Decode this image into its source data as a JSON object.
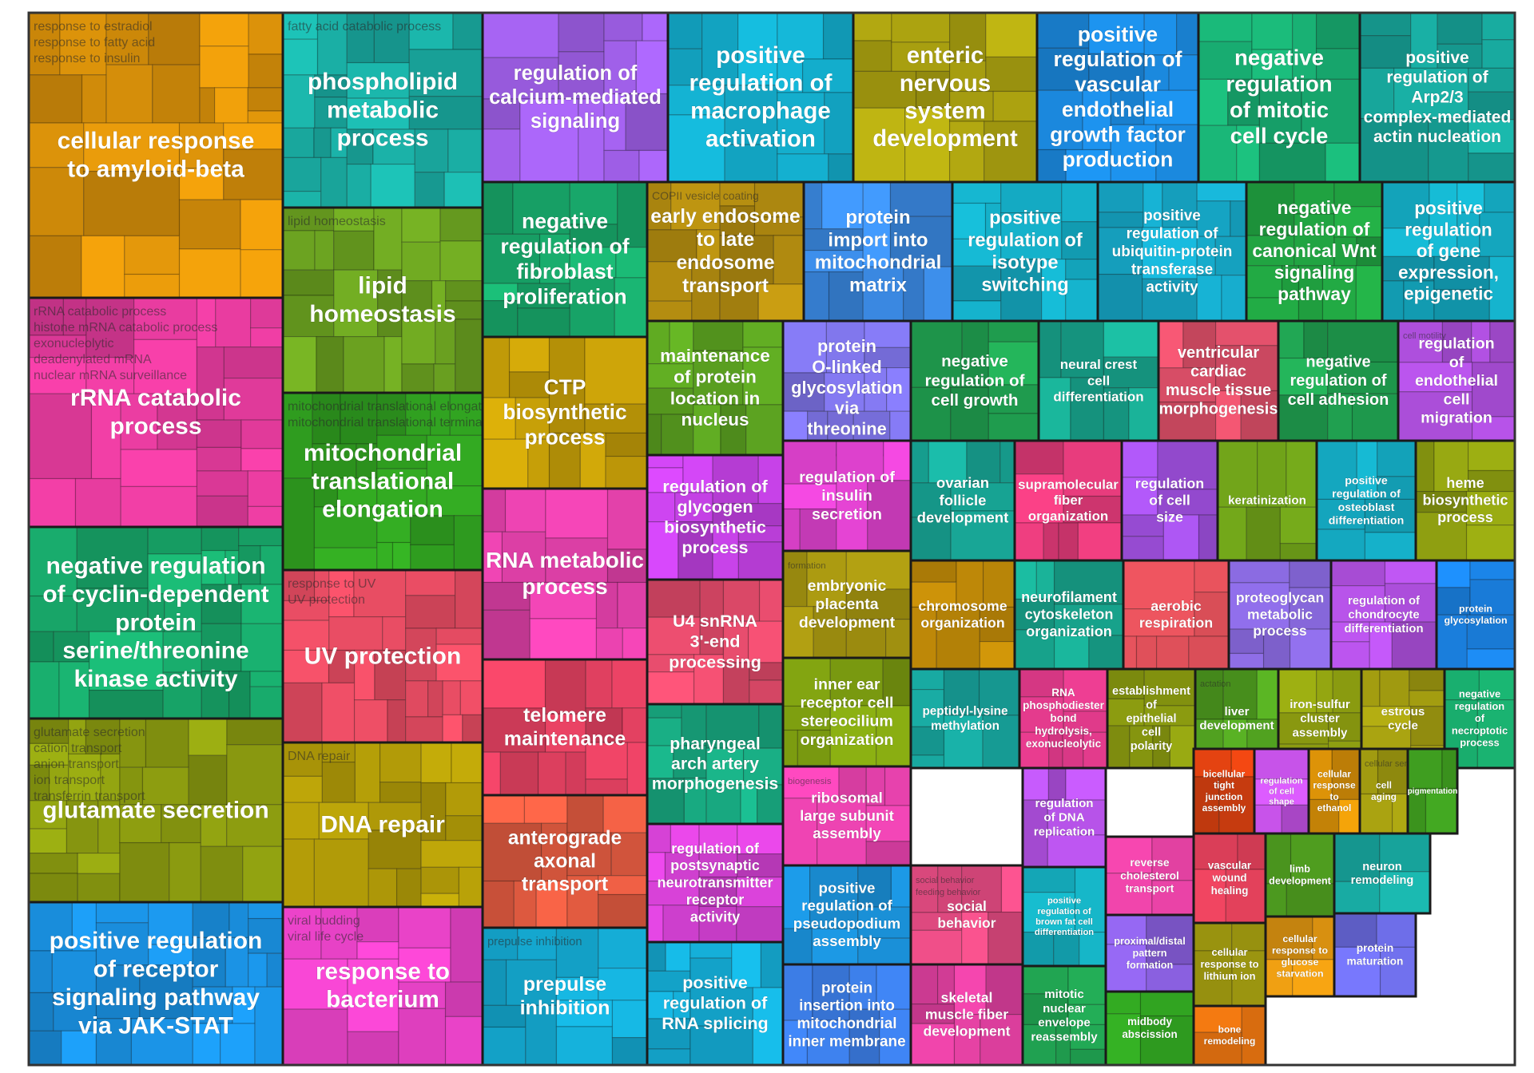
{
  "chart_data": {
    "type": "treemap",
    "title": "",
    "groups": [
      {
        "label": "cellular response to amyloid-beta",
        "color": "#d8900a",
        "size": 12,
        "sub": [
          "response to estradiol",
          "response to fatty acid",
          "response to insulin"
        ]
      },
      {
        "label": "phospholipid metabolic process",
        "color": "#1aada3",
        "size": 7,
        "sub": [
          "fatty acid catabolic process"
        ]
      },
      {
        "label": "regulation of calcium-mediated signaling",
        "color": "#9a5ce0",
        "size": 5,
        "sub": []
      },
      {
        "label": "positive regulation of macrophage activation",
        "color": "#13a9c8",
        "size": 5,
        "sub": []
      },
      {
        "label": "enteric nervous system development",
        "color": "#a9a010",
        "size": 5,
        "sub": []
      },
      {
        "label": "positive regulation of vascular endothelial growth factor production",
        "color": "#1b8ae0",
        "size": 4,
        "sub": []
      },
      {
        "label": "negative regulation of mitotic cell cycle",
        "color": "#18a96f",
        "size": 4,
        "sub": []
      },
      {
        "label": "positive regulation of Arp2/3 complex-mediated actin nucleation",
        "color": "#17a59a",
        "size": 4,
        "sub": []
      },
      {
        "label": "rRNA catabolic process",
        "color": "#e03a9a",
        "size": 8,
        "sub": [
          "rRNA catabolic process",
          "histone mRNA catabolic process",
          "exonucleolytic",
          "deadenylated mRNA",
          "nuclear mRNA surveillance"
        ]
      },
      {
        "label": "lipid homeostasis",
        "color": "#6aa020",
        "size": 6,
        "sub": [
          "lipid homeostasis"
        ]
      },
      {
        "label": "negative regulation of fibroblast proliferation",
        "color": "#18a86a",
        "size": 4,
        "sub": []
      },
      {
        "label": "early endosome to late endosome transport",
        "color": "#b08a10",
        "size": 4,
        "sub": [
          "COPII vesicle coating"
        ]
      },
      {
        "label": "protein import into mitochondrial matrix",
        "color": "#3a88e0",
        "size": 3,
        "sub": []
      },
      {
        "label": "positive regulation of isotype switching",
        "color": "#14a8c0",
        "size": 3,
        "sub": []
      },
      {
        "label": "positive regulation of ubiquitin-protein transferase activity",
        "color": "#16a8c8",
        "size": 3,
        "sub": []
      },
      {
        "label": "negative regulation of canonical Wnt signaling pathway",
        "color": "#20a040",
        "size": 3,
        "sub": []
      },
      {
        "label": "positive regulation of gene expression, epigenetic",
        "color": "#14a8c0",
        "size": 3,
        "sub": []
      },
      {
        "label": "mitochondrial translational elongation",
        "color": "#30a020",
        "size": 6,
        "sub": [
          "mitochondrial translational elongation",
          "mitochondrial translational termination"
        ]
      },
      {
        "label": "CTP biosynthetic process",
        "color": "#c09a08",
        "size": 4,
        "sub": []
      },
      {
        "label": "maintenance of protein location in nucleus",
        "color": "#5aa020",
        "size": 3,
        "sub": []
      },
      {
        "label": "protein O-linked glycosylation via threonine",
        "color": "#7a70e0",
        "size": 3,
        "sub": []
      },
      {
        "label": "negative regulation of cell growth",
        "color": "#20a050",
        "size": 3,
        "sub": []
      },
      {
        "label": "neural crest cell differentiation",
        "color": "#18a890",
        "size": 2,
        "sub": []
      },
      {
        "label": "ventricular cardiac muscle tissue morphogenesis",
        "color": "#e0506a",
        "size": 2,
        "sub": []
      },
      {
        "label": "negative regulation of cell adhesion",
        "color": "#20a050",
        "size": 3,
        "sub": []
      },
      {
        "label": "regulation of endothelial cell migration",
        "color": "#b050e0",
        "size": 2,
        "sub": [
          "cell motility"
        ]
      },
      {
        "label": "negative regulation of cyclin-dependent protein serine/threonine kinase activity",
        "color": "#18a86a",
        "size": 8,
        "sub": []
      },
      {
        "label": "UV protection",
        "color": "#e04a60",
        "size": 6,
        "sub": [
          "response to UV",
          "UV protection"
        ]
      },
      {
        "label": "RNA metabolic process",
        "color": "#e040a8",
        "size": 4,
        "sub": []
      },
      {
        "label": "regulation of glycogen biosynthetic process",
        "color": "#c040e0",
        "size": 3,
        "sub": []
      },
      {
        "label": "regulation of insulin secretion",
        "color": "#d840c8",
        "size": 3,
        "sub": []
      },
      {
        "label": "ovarian follicle development",
        "color": "#18a898",
        "size": 2,
        "sub": []
      },
      {
        "label": "supramolecular fiber organization",
        "color": "#e03a78",
        "size": 2,
        "sub": []
      },
      {
        "label": "regulation of cell size",
        "color": "#a050e0",
        "size": 2,
        "sub": []
      },
      {
        "label": "keratinization",
        "color": "#6a9a18",
        "size": 2,
        "sub": []
      },
      {
        "label": "positive regulation of osteoblast differentiation",
        "color": "#14a8c0",
        "size": 2,
        "sub": []
      },
      {
        "label": "heme biosynthetic process",
        "color": "#8a9a10",
        "size": 2,
        "sub": []
      },
      {
        "label": "glutamate secretion",
        "color": "#8a9a10",
        "size": 6,
        "sub": [
          "glutamate secretion",
          "cation transport",
          "anion transport",
          "ion transport",
          "transferrin transport"
        ]
      },
      {
        "label": "DNA repair",
        "color": "#b09a08",
        "size": 6,
        "sub": [
          "DNA repair"
        ]
      },
      {
        "label": "telomere maintenance",
        "color": "#e04060",
        "size": 4,
        "sub": []
      },
      {
        "label": "U4 snRNA 3'-end processing",
        "color": "#e04a6a",
        "size": 3,
        "sub": []
      },
      {
        "label": "embryonic placenta development",
        "color": "#a09010",
        "size": 3,
        "sub": [
          "formation"
        ]
      },
      {
        "label": "chromosome organization",
        "color": "#c08a08",
        "size": 2,
        "sub": []
      },
      {
        "label": "neurofilament cytoskeleton organization",
        "color": "#18a890",
        "size": 2,
        "sub": []
      },
      {
        "label": "aerobic respiration",
        "color": "#e0505a",
        "size": 2,
        "sub": []
      },
      {
        "label": "proteoglycan metabolic process",
        "color": "#8a6ae0",
        "size": 2,
        "sub": []
      },
      {
        "label": "regulation of chondrocyte differentiation",
        "color": "#b050e0",
        "size": 2,
        "sub": []
      },
      {
        "label": "protein glycosylation",
        "color": "#1a80e0",
        "size": 2,
        "sub": []
      },
      {
        "label": "pharyngeal arch artery morphogenesis",
        "color": "#18a880",
        "size": 3,
        "sub": []
      },
      {
        "label": "inner ear receptor cell stereocilium organization",
        "color": "#7a9a10",
        "size": 3,
        "sub": []
      },
      {
        "label": "peptidyl-lysine methylation",
        "color": "#18a8a0",
        "size": 2,
        "sub": []
      },
      {
        "label": "RNA phosphodiester bond hydrolysis, exonucleolytic",
        "color": "#e03a8a",
        "size": 2,
        "sub": []
      },
      {
        "label": "establishment of epithelial cell polarity",
        "color": "#8a9a10",
        "size": 2,
        "sub": []
      },
      {
        "label": "liver development",
        "color": "#50a020",
        "size": 2,
        "sub": [
          "actation"
        ]
      },
      {
        "label": "iron-sulfur cluster assembly",
        "color": "#8a9a10",
        "size": 2,
        "sub": []
      },
      {
        "label": "estrous cycle",
        "color": "#a09a10",
        "size": 2,
        "sub": []
      },
      {
        "label": "negative regulation of necroptotic process",
        "color": "#18a86a",
        "size": 6,
        "sub": []
      },
      {
        "label": "positive regulation of receptor signaling pathway via JAK-STAT",
        "color": "#1a90e0",
        "size": 6,
        "sub": []
      },
      {
        "label": "response to bacterium",
        "color": "#e040c0",
        "size": 4,
        "sub": [
          "viral budding",
          "viral life cycle"
        ]
      },
      {
        "label": "anterograde axonal transport",
        "color": "#e05a40",
        "size": 4,
        "sub": []
      },
      {
        "label": "prepulse inhibition",
        "color": "#14a8d0",
        "size": 3,
        "sub": [
          "prepulse inhibition"
        ]
      },
      {
        "label": "regulation of postsynaptic neurotransmitter receptor activity",
        "color": "#d040d0",
        "size": 3,
        "sub": []
      },
      {
        "label": "positive regulation of RNA splicing",
        "color": "#14a8d0",
        "size": 2,
        "sub": []
      },
      {
        "label": "ribosomal large subunit assembly",
        "color": "#e040a8",
        "size": 2,
        "sub": [
          "biogenesis"
        ]
      },
      {
        "label": "positive regulation of pseudopodium assembly",
        "color": "#1a90d8",
        "size": 2,
        "sub": []
      },
      {
        "label": "protein insertion into mitochondrial inner membrane",
        "color": "#3a7ae0",
        "size": 2,
        "sub": []
      },
      {
        "label": "social behavior",
        "color": "#e04a80",
        "size": 2,
        "sub": [
          "social behavior",
          "feeding behavior"
        ]
      },
      {
        "label": "skeletal muscle fiber development",
        "color": "#e040a0",
        "size": 2,
        "sub": []
      },
      {
        "label": "regulation of DNA replication",
        "color": "#b050e0",
        "size": 2,
        "sub": []
      },
      {
        "label": "positive regulation of brown fat cell differentiation",
        "color": "#14a8b8",
        "size": 2,
        "sub": []
      },
      {
        "label": "mitotic nuclear envelope reassembly",
        "color": "#20a050",
        "size": 2,
        "sub": []
      },
      {
        "label": "reverse cholesterol transport",
        "color": "#e040a0",
        "size": 1,
        "sub": []
      },
      {
        "label": "proximal/distal pattern formation",
        "color": "#8a60e0",
        "size": 1,
        "sub": []
      },
      {
        "label": "midbody abscission",
        "color": "#30a020",
        "size": 1,
        "sub": []
      },
      {
        "label": "bicellular tight junction assembly",
        "color": "#d84010",
        "size": 1,
        "sub": []
      },
      {
        "label": "regulation of cell shape",
        "color": "#c050e0",
        "size": 1,
        "sub": []
      },
      {
        "label": "cellular response to ethanol",
        "color": "#d89008",
        "size": 1,
        "sub": []
      },
      {
        "label": "cell aging",
        "color": "#a09a10",
        "size": 1,
        "sub": [
          "cellular senescence"
        ]
      },
      {
        "label": "pigmentation",
        "color": "#40a020",
        "size": 1,
        "sub": []
      },
      {
        "label": "vascular wound healing",
        "color": "#e0405a",
        "size": 1,
        "sub": []
      },
      {
        "label": "cellular response to lithium ion",
        "color": "#a09a10",
        "size": 1,
        "sub": []
      },
      {
        "label": "bone remodeling",
        "color": "#e07010",
        "size": 1,
        "sub": []
      },
      {
        "label": "limb development",
        "color": "#50a020",
        "size": 1,
        "sub": []
      },
      {
        "label": "cellular response to glucose starvation",
        "color": "#d89010",
        "size": 1,
        "sub": []
      },
      {
        "label": "neuron remodeling",
        "color": "#18a8a0",
        "size": 1,
        "sub": []
      },
      {
        "label": "protein maturation",
        "color": "#6a6ae0",
        "size": 1,
        "sub": []
      }
    ]
  }
}
